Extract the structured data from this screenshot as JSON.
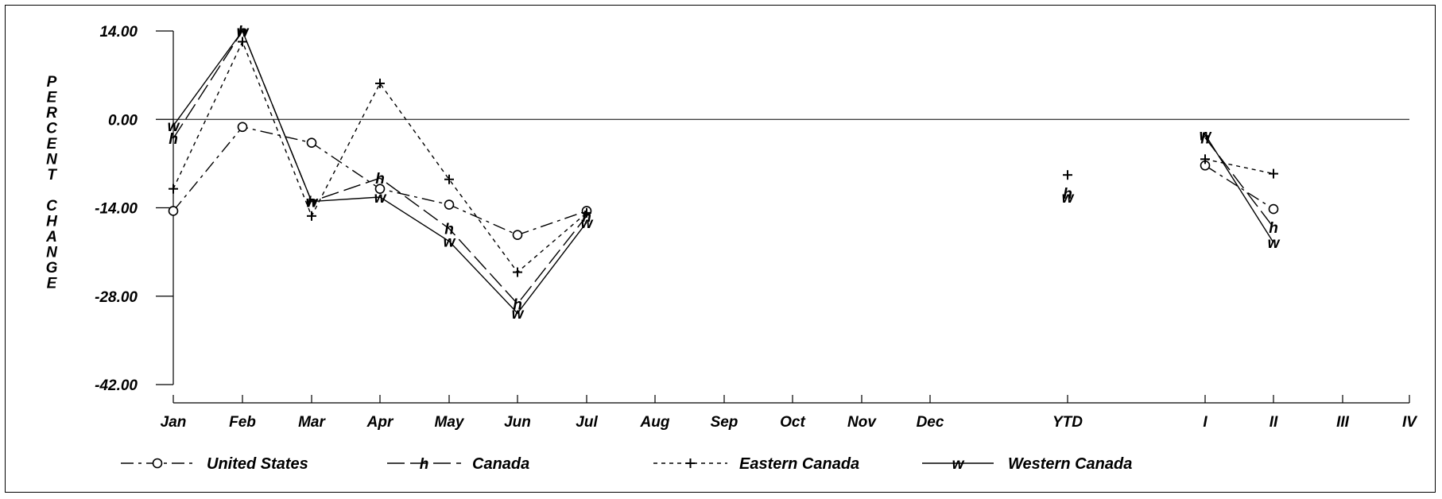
{
  "chart_data": {
    "type": "line",
    "ylabel": "PERCENT CHANGE",
    "ylim": [
      -42,
      14
    ],
    "yticks": [
      "14.00",
      "0.00",
      "-14.00",
      "-28.00",
      "-42.00"
    ],
    "categories": [
      "Jan",
      "Feb",
      "Mar",
      "Apr",
      "May",
      "Jun",
      "Jul",
      "Aug",
      "Sep",
      "Oct",
      "Nov",
      "Dec",
      "YTD",
      "I",
      "II",
      "III",
      "IV"
    ],
    "grid": false,
    "legend_position": "bottom",
    "series": [
      {
        "name": "United States",
        "marker": "o",
        "values": [
          -14.5,
          -1.2,
          -3.7,
          -11.0,
          -13.5,
          -18.3,
          -14.5,
          null,
          null,
          null,
          null,
          null,
          null,
          -7.3,
          -14.2,
          null,
          null
        ]
      },
      {
        "name": "Canada",
        "marker": "h",
        "values": [
          -3.0,
          14.0,
          -13.0,
          -9.3,
          -17.3,
          -29.2,
          -15.3,
          null,
          null,
          null,
          null,
          null,
          -11.7,
          -2.9,
          -17.1,
          null,
          null
        ]
      },
      {
        "name": "Eastern Canada",
        "marker": "+",
        "values": [
          -11.0,
          12.3,
          -15.3,
          5.7,
          -9.5,
          -24.2,
          -14.8,
          null,
          null,
          null,
          null,
          null,
          -8.8,
          -6.3,
          -8.6,
          null,
          null
        ]
      },
      {
        "name": "Western Canada",
        "marker": "w",
        "values": [
          -1.0,
          14.0,
          -13.0,
          -12.3,
          -19.3,
          -30.7,
          -16.3,
          null,
          null,
          null,
          null,
          null,
          -12.3,
          -2.4,
          -19.5,
          null,
          null
        ]
      }
    ]
  }
}
